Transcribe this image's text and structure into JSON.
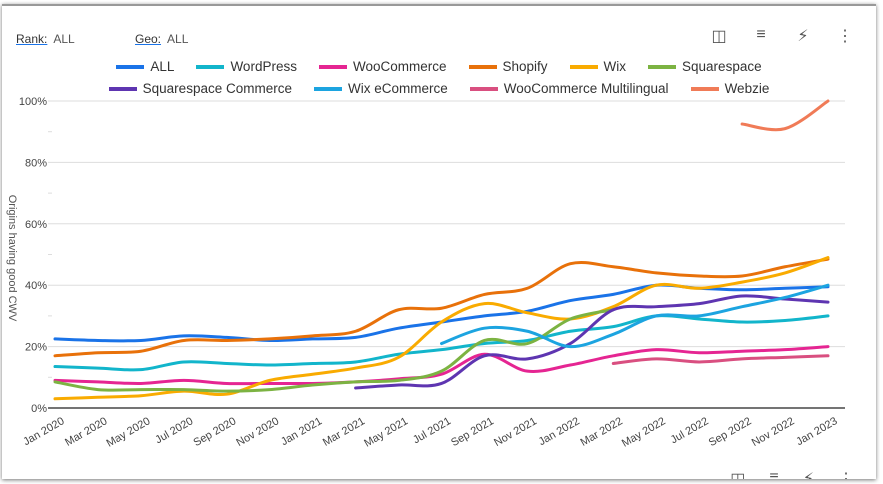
{
  "controls": {
    "rank_label": "Rank:",
    "rank_value": "ALL",
    "geo_label": "Geo:",
    "geo_value": "ALL"
  },
  "toolbar": {
    "chart_icon": "chart-settings-icon",
    "filter_icon": "filter-icon",
    "bolt_icon": "bolt-icon",
    "more_icon": "more-vert-icon"
  },
  "chart_data": {
    "type": "line",
    "title": "",
    "ylabel": "Origins having good CWV",
    "xlabel": "",
    "ylim": [
      0,
      100
    ],
    "yticks": [
      "0%",
      "20%",
      "40%",
      "60%",
      "80%",
      "100%"
    ],
    "x": [
      "Jan 2020",
      "Mar 2020",
      "May 2020",
      "Jul 2020",
      "Sep 2020",
      "Nov 2020",
      "Jan 2021",
      "Mar 2021",
      "May 2021",
      "Jul 2021",
      "Sep 2021",
      "Nov 2021",
      "Jan 2022",
      "Mar 2022",
      "May 2022",
      "Jul 2022",
      "Sep 2022",
      "Nov 2022",
      "Jan 2023"
    ],
    "legend_position": "top",
    "series": [
      {
        "name": "ALL",
        "color": "#1a73e8",
        "values": [
          22.5,
          22,
          22,
          23.5,
          23,
          22,
          22.5,
          23,
          26,
          28,
          30,
          31.5,
          35,
          37,
          40,
          39,
          38.5,
          39,
          39.5
        ]
      },
      {
        "name": "WordPress",
        "color": "#12b5cb",
        "values": [
          13.5,
          13,
          12.5,
          15,
          14.5,
          14,
          14.5,
          15,
          17.5,
          19,
          21,
          22,
          25,
          26.5,
          30,
          29,
          28,
          28.5,
          30
        ]
      },
      {
        "name": "WooCommerce",
        "color": "#e52592",
        "values": [
          9,
          8.5,
          8,
          9,
          8,
          8,
          8,
          8.5,
          9.5,
          11,
          17.5,
          12,
          14,
          17,
          19,
          18,
          18.5,
          19,
          20
        ]
      },
      {
        "name": "Shopify",
        "color": "#e8710a",
        "values": [
          17,
          18,
          18.5,
          22,
          22,
          22.5,
          23.5,
          25,
          32,
          32.5,
          37,
          39,
          47,
          46,
          44,
          43,
          43,
          46,
          48.5
        ]
      },
      {
        "name": "Wix",
        "color": "#f9ab00",
        "values": [
          3,
          3.5,
          4,
          5.5,
          4.5,
          9,
          11,
          13,
          16.5,
          28,
          34,
          31,
          29,
          33,
          40,
          39,
          41,
          44,
          49
        ]
      },
      {
        "name": "Squarespace",
        "color": "#7cb342",
        "values": [
          8.5,
          6,
          6,
          6,
          5.5,
          6,
          7.5,
          8.5,
          9,
          12,
          22,
          21,
          29,
          32,
          null,
          null,
          null,
          null,
          null
        ]
      },
      {
        "name": "Squarespace Commerce",
        "color": "#5e35b1",
        "values": [
          null,
          null,
          null,
          null,
          null,
          null,
          null,
          6.5,
          7.5,
          8,
          17,
          16,
          21,
          32,
          33,
          34,
          36.5,
          35.5,
          34.5
        ]
      },
      {
        "name": "Wix eCommerce",
        "color": "#1ca4e0",
        "values": [
          null,
          null,
          null,
          null,
          null,
          null,
          null,
          null,
          null,
          21,
          26,
          25,
          20,
          24,
          30,
          30,
          33,
          36,
          40
        ]
      },
      {
        "name": "WooCommerce Multilingual",
        "color": "#d94f80",
        "values": [
          null,
          null,
          null,
          null,
          null,
          null,
          null,
          null,
          null,
          null,
          null,
          null,
          null,
          14.5,
          16,
          15,
          16,
          16.5,
          17
        ]
      },
      {
        "name": "Webzie",
        "color": "#f07b57",
        "values": [
          null,
          null,
          null,
          null,
          null,
          null,
          null,
          null,
          null,
          null,
          null,
          null,
          null,
          null,
          null,
          null,
          92.5,
          91,
          100
        ]
      }
    ]
  }
}
